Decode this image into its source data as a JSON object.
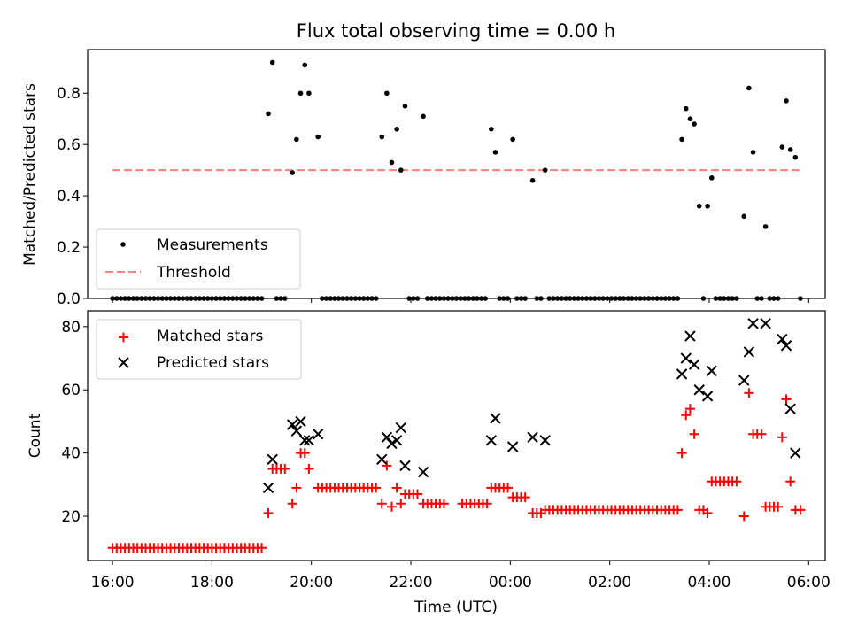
{
  "title": "Flux total observing time = 0.00 h",
  "colors": {
    "measurement": "#000000",
    "threshold": "#ff7f7f",
    "matched": "#ff0000",
    "predicted": "#000000"
  },
  "chart_data": [
    {
      "type": "scatter",
      "ylabel": "Matched/Predicted stars",
      "ylim": [
        0,
        0.97
      ],
      "xlim": [
        "15:30",
        "06:20"
      ],
      "yticks": [
        "0.0",
        "0.2",
        "0.4",
        "0.6",
        "0.8"
      ],
      "legend": {
        "placement": "lower-left",
        "entries": [
          "Measurements",
          "Threshold"
        ]
      },
      "threshold": {
        "name": "Threshold",
        "y": 0.5,
        "x": [
          "16:00",
          "05:50"
        ]
      },
      "series": [
        {
          "name": "Measurements",
          "points": [
            [
              "19:08",
              0.72
            ],
            [
              "19:13",
              0.92
            ],
            [
              "19:37",
              0.49
            ],
            [
              "19:42",
              0.62
            ],
            [
              "19:47",
              0.8
            ],
            [
              "19:52",
              0.91
            ],
            [
              "19:57",
              0.8
            ],
            [
              "20:08",
              0.63
            ],
            [
              "21:25",
              0.63
            ],
            [
              "21:31",
              0.8
            ],
            [
              "21:37",
              0.53
            ],
            [
              "21:43",
              0.66
            ],
            [
              "21:48",
              0.5
            ],
            [
              "21:53",
              0.75
            ],
            [
              "22:15",
              0.71
            ],
            [
              "23:37",
              0.66
            ],
            [
              "23:42",
              0.57
            ],
            [
              "00:03",
              0.62
            ],
            [
              "00:27",
              0.46
            ],
            [
              "00:42",
              0.5
            ],
            [
              "03:27",
              0.62
            ],
            [
              "03:32",
              0.74
            ],
            [
              "03:37",
              0.7
            ],
            [
              "03:42",
              0.68
            ],
            [
              "03:48",
              0.36
            ],
            [
              "03:58",
              0.36
            ],
            [
              "04:03",
              0.47
            ],
            [
              "04:42",
              0.32
            ],
            [
              "04:48",
              0.82
            ],
            [
              "04:53",
              0.57
            ],
            [
              "05:08",
              0.28
            ],
            [
              "05:28",
              0.59
            ],
            [
              "05:33",
              0.77
            ],
            [
              "05:38",
              0.58
            ],
            [
              "05:44",
              0.55
            ]
          ],
          "zero_ranges": [
            [
              "16:00",
              "19:03"
            ],
            [
              "19:18",
              "19:32"
            ],
            [
              "20:13",
              "21:20"
            ],
            [
              "21:58",
              "22:10"
            ],
            [
              "22:20",
              "23:32"
            ],
            [
              "23:47",
              "23:58"
            ],
            [
              "00:08",
              "00:22"
            ],
            [
              "00:32",
              "00:37"
            ],
            [
              "00:47",
              "03:22"
            ],
            [
              "03:53",
              "03:53"
            ],
            [
              "04:08",
              "04:37"
            ],
            [
              "04:58",
              "05:03"
            ],
            [
              "05:13",
              "05:23"
            ],
            [
              "05:50",
              "05:50"
            ]
          ]
        }
      ]
    },
    {
      "type": "scatter",
      "xlabel": "Time (UTC)",
      "ylabel": "Count",
      "ylim": [
        6,
        85
      ],
      "xlim": [
        "15:30",
        "06:20"
      ],
      "xticks": [
        "16:00",
        "18:00",
        "20:00",
        "22:00",
        "00:00",
        "02:00",
        "04:00",
        "06:00"
      ],
      "yticks": [
        "20",
        "40",
        "60",
        "80"
      ],
      "legend": {
        "placement": "upper-left",
        "entries": [
          "Matched stars",
          "Predicted stars"
        ]
      },
      "series": [
        {
          "name": "Matched stars",
          "marker": "plus",
          "segments": [
            [
              "16:00",
              "19:03",
              10
            ],
            [
              "19:18",
              "19:32",
              35
            ],
            [
              "20:13",
              "21:20",
              29
            ],
            [
              "21:58",
              "22:10",
              27
            ],
            [
              "22:20",
              "22:42",
              24
            ],
            [
              "23:02",
              "23:32",
              24
            ],
            [
              "23:47",
              "23:58",
              29
            ],
            [
              "00:08",
              "00:22",
              26
            ],
            [
              "00:32",
              "00:37",
              21
            ],
            [
              "00:47",
              "03:22",
              22
            ],
            [
              "04:08",
              "04:37",
              31
            ],
            [
              "04:58",
              "05:03",
              46
            ],
            [
              "05:13",
              "05:23",
              23
            ],
            [
              "05:50",
              "05:50",
              22
            ]
          ],
          "points": [
            [
              "19:08",
              21
            ],
            [
              "19:13",
              35
            ],
            [
              "19:37",
              24
            ],
            [
              "19:42",
              29
            ],
            [
              "19:47",
              40
            ],
            [
              "19:52",
              40
            ],
            [
              "19:57",
              35
            ],
            [
              "20:08",
              29
            ],
            [
              "21:25",
              24
            ],
            [
              "21:31",
              36
            ],
            [
              "21:37",
              23
            ],
            [
              "21:43",
              29
            ],
            [
              "21:48",
              24
            ],
            [
              "21:53",
              27
            ],
            [
              "22:15",
              24
            ],
            [
              "23:37",
              29
            ],
            [
              "23:42",
              29
            ],
            [
              "00:03",
              26
            ],
            [
              "00:27",
              21
            ],
            [
              "00:42",
              22
            ],
            [
              "03:27",
              40
            ],
            [
              "03:32",
              52
            ],
            [
              "03:37",
              54
            ],
            [
              "03:42",
              46
            ],
            [
              "03:48",
              22
            ],
            [
              "03:53",
              22
            ],
            [
              "03:58",
              21
            ],
            [
              "04:03",
              31
            ],
            [
              "04:42",
              20
            ],
            [
              "04:48",
              59
            ],
            [
              "04:53",
              46
            ],
            [
              "05:08",
              23
            ],
            [
              "05:28",
              45
            ],
            [
              "05:33",
              57
            ],
            [
              "05:38",
              31
            ],
            [
              "05:44",
              22
            ]
          ]
        },
        {
          "name": "Predicted stars",
          "marker": "x",
          "points": [
            [
              "19:08",
              29
            ],
            [
              "19:13",
              38
            ],
            [
              "19:37",
              49
            ],
            [
              "19:42",
              47
            ],
            [
              "19:47",
              50
            ],
            [
              "19:52",
              44
            ],
            [
              "19:57",
              44
            ],
            [
              "20:08",
              46
            ],
            [
              "21:25",
              38
            ],
            [
              "21:31",
              45
            ],
            [
              "21:37",
              43
            ],
            [
              "21:43",
              44
            ],
            [
              "21:48",
              48
            ],
            [
              "21:53",
              36
            ],
            [
              "22:15",
              34
            ],
            [
              "23:37",
              44
            ],
            [
              "23:42",
              51
            ],
            [
              "00:03",
              42
            ],
            [
              "00:27",
              45
            ],
            [
              "00:42",
              44
            ],
            [
              "03:27",
              65
            ],
            [
              "03:32",
              70
            ],
            [
              "03:37",
              77
            ],
            [
              "03:42",
              68
            ],
            [
              "03:48",
              60
            ],
            [
              "03:58",
              58
            ],
            [
              "04:03",
              66
            ],
            [
              "04:42",
              63
            ],
            [
              "04:48",
              72
            ],
            [
              "04:53",
              81
            ],
            [
              "05:08",
              81
            ],
            [
              "05:28",
              76
            ],
            [
              "05:33",
              74
            ],
            [
              "05:38",
              54
            ],
            [
              "05:44",
              40
            ]
          ]
        }
      ]
    }
  ]
}
